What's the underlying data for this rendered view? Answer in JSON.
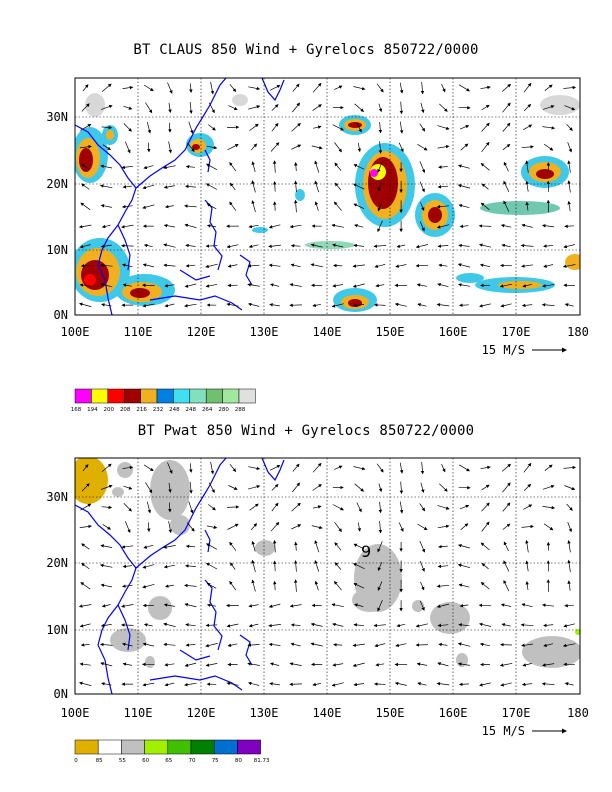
{
  "panels": [
    {
      "title": "BT CLAUS 850 Wind + Gyrelocs 850722/0000",
      "x_ticks": [
        "100E",
        "110E",
        "120E",
        "130E",
        "140E",
        "150E",
        "160E",
        "170E",
        "180"
      ],
      "y_ticks": [
        "0N",
        "10N",
        "20N",
        "30N"
      ],
      "vector_ref": "15 M/S",
      "colorbar_labels": [
        "168",
        "194",
        "200",
        "208",
        "216",
        "232",
        "248",
        "248",
        "264",
        "280",
        "288"
      ],
      "colorbar_colors": [
        "#ff00ff",
        "#ffff00",
        "#ff0000",
        "#a00000",
        "#f0b020",
        "#0080e0",
        "#40e0f0",
        "#80e0c0",
        "#70c070",
        "#a0e8a0",
        "#e0e0e0"
      ]
    },
    {
      "title": "BT Pwat 850 Wind + Gyrelocs 850722/0000",
      "x_ticks": [
        "100E",
        "110E",
        "120E",
        "130E",
        "140E",
        "150E",
        "160E",
        "170E",
        "180"
      ],
      "y_ticks": [
        "0N",
        "10N",
        "20N",
        "30N"
      ],
      "vector_ref": "15 M/S",
      "gyre_marker": "9",
      "colorbar_labels": [
        "0",
        "85",
        "55",
        "60",
        "65",
        "70",
        "75",
        "80",
        "81.73"
      ],
      "colorbar_colors": [
        "#e0b000",
        "#ffffff",
        "#c0c0c0",
        "#a0f000",
        "#40c000",
        "#008000",
        "#0070d0",
        "#8000c0"
      ]
    }
  ]
}
